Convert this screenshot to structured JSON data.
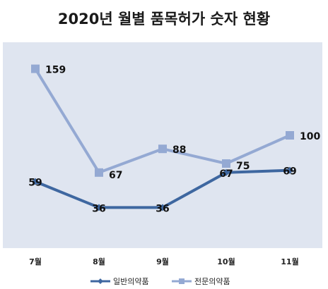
{
  "chart_data": {
    "type": "line",
    "title": "2020년 월별 품목허가 숫자 현황",
    "categories": [
      "7월",
      "8월",
      "9월",
      "10월",
      "11월"
    ],
    "series": [
      {
        "name": "일반의약품",
        "values": [
          59,
          36,
          36,
          67,
          69
        ],
        "color": "#3e67a0",
        "marker": "diamond"
      },
      {
        "name": "전문의약품",
        "values": [
          159,
          67,
          88,
          75,
          100
        ],
        "color": "#94a9d3",
        "marker": "square"
      }
    ],
    "ylim": [
      0,
      180
    ],
    "xlabel": "",
    "ylabel": "",
    "grid": false,
    "legend_position": "bottom",
    "plot_background": "#dfe5f0"
  }
}
